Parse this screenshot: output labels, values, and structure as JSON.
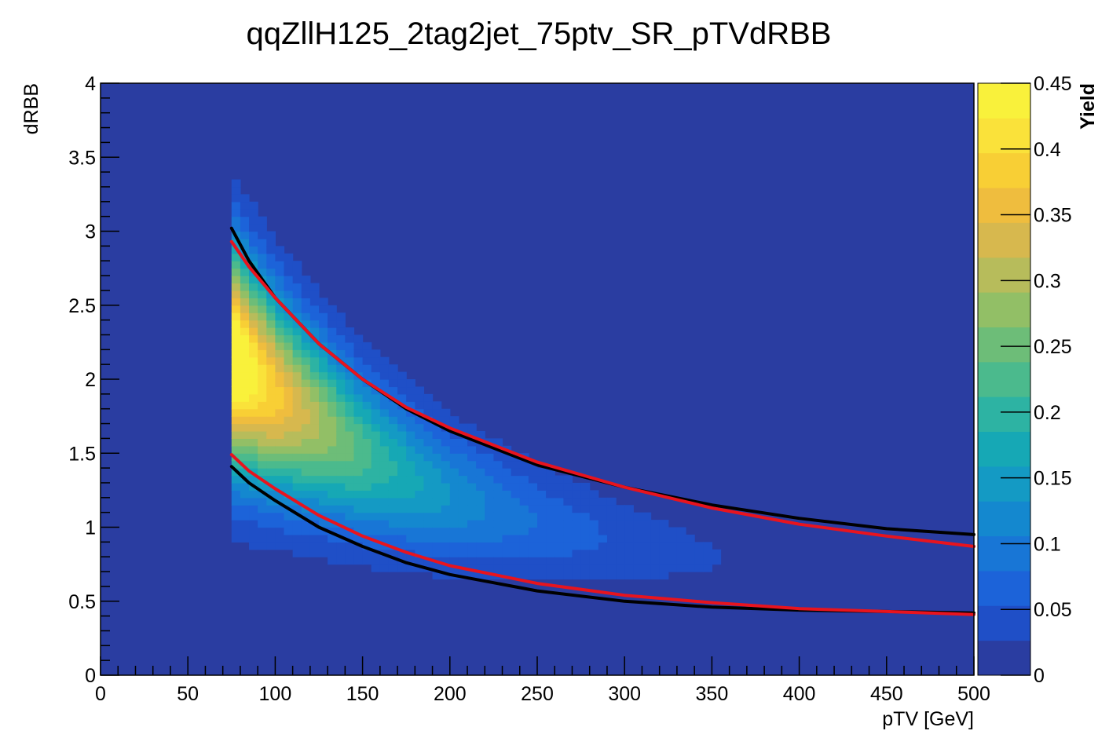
{
  "chart_data": {
    "type": "heatmap",
    "title": "qqZllH125_2tag2jet_75ptv_SR_pTVdRBB",
    "xlabel": "pTV [GeV]",
    "ylabel": "dRBB",
    "zlabel": "Yield",
    "xlim": [
      0,
      500
    ],
    "ylim": [
      0,
      4
    ],
    "zlim": [
      0,
      0.45
    ],
    "x_ticks": [
      0,
      50,
      100,
      150,
      200,
      250,
      300,
      350,
      400,
      450,
      500
    ],
    "x_tick_labels": [
      "0",
      "50",
      "100",
      "150",
      "200",
      "250",
      "300",
      "350",
      "400",
      "450",
      "500"
    ],
    "y_ticks": [
      0,
      0.5,
      1,
      1.5,
      2,
      2.5,
      3,
      3.5,
      4
    ],
    "y_tick_labels": [
      "0",
      "0.5",
      "1",
      "1.5",
      "2",
      "2.5",
      "3",
      "3.5",
      "4"
    ],
    "z_ticks": [
      0,
      0.05,
      0.1,
      0.15,
      0.2,
      0.25,
      0.3,
      0.35,
      0.4,
      0.45
    ],
    "z_tick_labels": [
      "0",
      "0.05",
      "0.1",
      "0.15",
      "0.2",
      "0.25",
      "0.3",
      "0.35",
      "0.4",
      "0.45"
    ],
    "grid": false,
    "x_bin_width": 5,
    "y_bin_width": 0.05,
    "peak": {
      "x": 85,
      "y": 2.05,
      "z": 0.45
    },
    "band_ridge": {
      "x": [
        75,
        100,
        125,
        150,
        175,
        200,
        250,
        300,
        350,
        400
      ],
      "y": [
        2.15,
        1.9,
        1.7,
        1.5,
        1.35,
        1.22,
        1.03,
        0.9,
        0.8,
        0.7
      ]
    },
    "colors": {
      "frame_background": "#2a3da1",
      "line_black": "#000000",
      "line_red": "#e8141e",
      "palette": [
        "#2a3da1",
        "#1f4fc7",
        "#1c63d9",
        "#1876d6",
        "#1488cf",
        "#149ac4",
        "#16a8b5",
        "#2db3a3",
        "#4bba8d",
        "#6dbd78",
        "#92bf66",
        "#b7bc5b",
        "#d7b84e",
        "#efbd3e",
        "#f8cf35",
        "#fae23a",
        "#f9f13b"
      ]
    },
    "lines": [
      {
        "color": "black",
        "x": [
          75,
          85,
          100,
          125,
          150,
          175,
          200,
          250,
          300,
          350,
          400,
          450,
          500
        ],
        "y": [
          3.02,
          2.8,
          2.55,
          2.24,
          2.0,
          1.8,
          1.65,
          1.42,
          1.27,
          1.15,
          1.06,
          0.99,
          0.95
        ]
      },
      {
        "color": "red",
        "x": [
          75,
          85,
          100,
          125,
          150,
          175,
          200,
          250,
          300,
          350,
          400,
          450,
          500
        ],
        "y": [
          2.93,
          2.76,
          2.55,
          2.24,
          2.0,
          1.81,
          1.67,
          1.44,
          1.27,
          1.13,
          1.02,
          0.94,
          0.87
        ]
      },
      {
        "color": "black",
        "x": [
          75,
          85,
          100,
          125,
          150,
          175,
          200,
          250,
          300,
          350,
          400,
          450,
          500
        ],
        "y": [
          1.41,
          1.3,
          1.18,
          1.0,
          0.87,
          0.76,
          0.68,
          0.57,
          0.5,
          0.46,
          0.44,
          0.43,
          0.42
        ]
      },
      {
        "color": "red",
        "x": [
          75,
          85,
          100,
          125,
          150,
          175,
          200,
          250,
          300,
          350,
          400,
          450,
          500
        ],
        "y": [
          1.49,
          1.38,
          1.26,
          1.08,
          0.94,
          0.83,
          0.74,
          0.62,
          0.54,
          0.49,
          0.45,
          0.43,
          0.41
        ]
      }
    ]
  }
}
